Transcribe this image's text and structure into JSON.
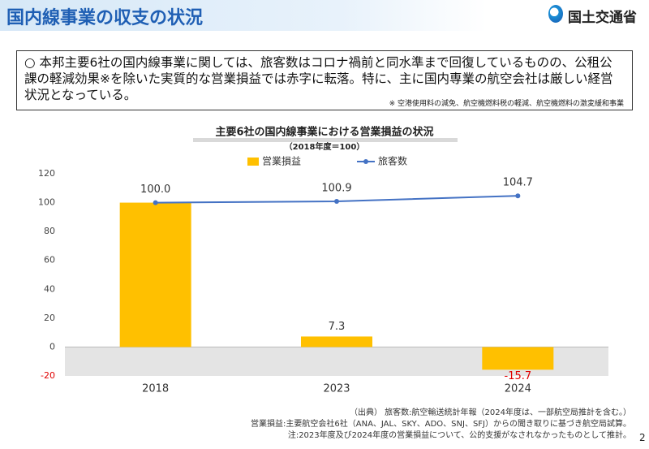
{
  "header": {
    "title": "国内線事業の収支の状況",
    "logo": "国土交通省"
  },
  "summary": {
    "text": "○ 本邦主要6社の国内線事業に関しては、旅客数はコロナ禍前と同水準まで回復しているものの、公租公課の軽減効果※を除いた実質的な営業損益では赤字に転落。特に、主に国内専業の航空会社は厳しい経営状況となっている。",
    "note": "※ 空港使用料の減免、航空機燃料税の軽減、航空機燃料の激変緩和事業"
  },
  "chart_data": {
    "type": "bar",
    "title": "主要6社の国内線事業における営業損益の状況",
    "subtitle": "（2018年度＝100）",
    "categories": [
      "2018",
      "2023",
      "2024"
    ],
    "series": [
      {
        "name": "営業損益",
        "type": "bar",
        "color": "#ffc000",
        "values": [
          100,
          7.3,
          -15.7
        ],
        "value_labels": [
          null,
          "7.3",
          "-15.7"
        ]
      },
      {
        "name": "旅客数",
        "type": "line",
        "color": "#4472c4",
        "values": [
          100,
          100.9,
          104.7
        ],
        "value_labels": [
          "100.0",
          "100.9",
          "104.7"
        ]
      }
    ],
    "ylim": [
      -20,
      120
    ],
    "yticks": [
      -20,
      0,
      20,
      40,
      60,
      80,
      100,
      120
    ],
    "negative_band_color": "#e4e4e4"
  },
  "footer": {
    "sources": [
      "（出典） 旅客数:航空輸送統計年報（2024年度は、一部航空局推計を含む。）",
      "営業損益:主要航空会社6社（ANA、JAL、SKY、ADO、SNJ、SFJ）からの聞き取りに基づき航空局試算。",
      "注:2023年度及び2024年度の営業損益について、公的支援がなされなかったものとして推計。"
    ],
    "page": "2"
  }
}
